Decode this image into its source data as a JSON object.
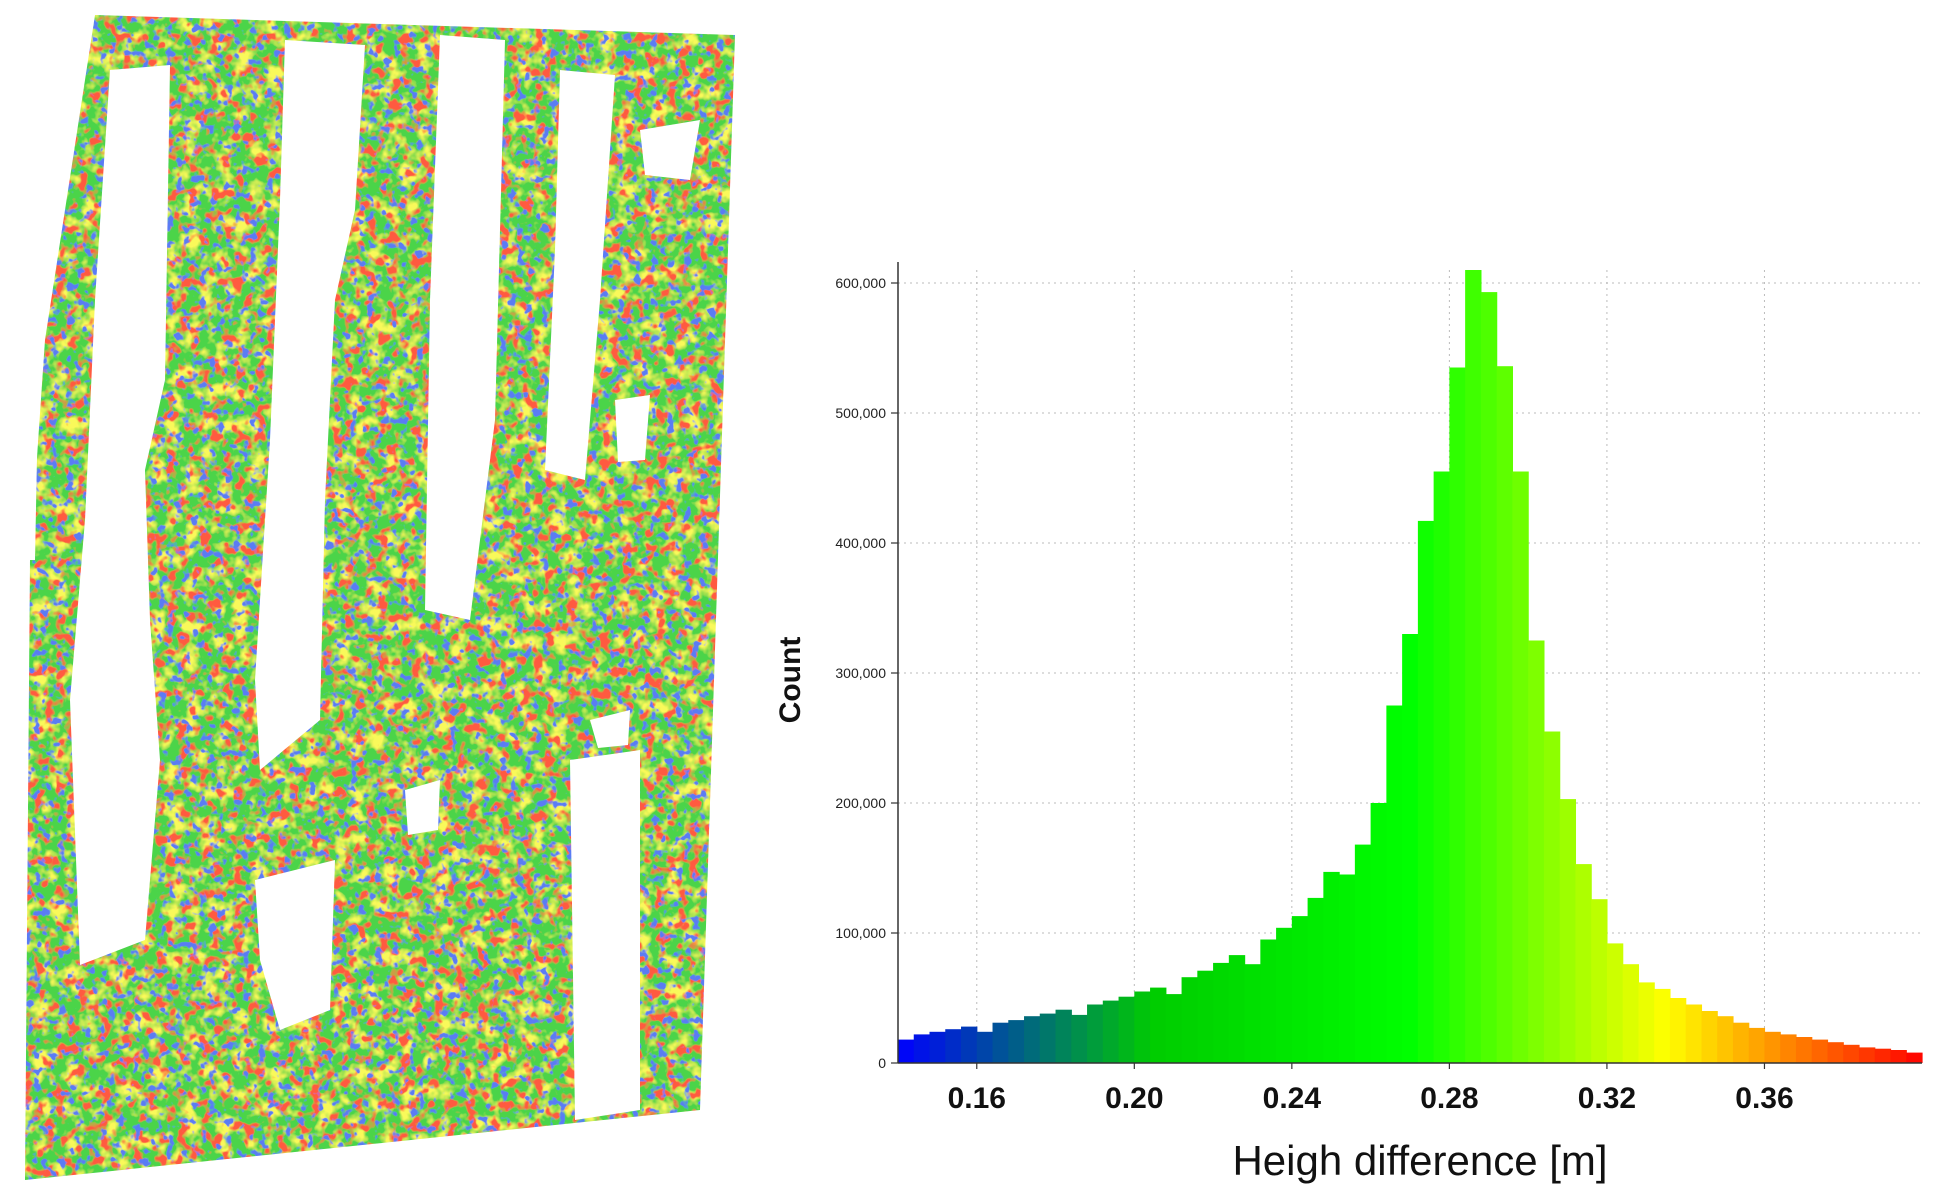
{
  "chart_data": {
    "type": "bar",
    "title": "",
    "xlabel": "Heigh difference [m]",
    "ylabel": "Count",
    "xlim": [
      0.14,
      0.4
    ],
    "ylim": [
      0,
      610000
    ],
    "x_ticks": [
      "0.16",
      "0.20",
      "0.24",
      "0.28",
      "0.32",
      "0.36"
    ],
    "y_ticks": [
      "0",
      "100,000",
      "200,000",
      "300,000",
      "400,000",
      "500,000",
      "600,000"
    ],
    "grid": "dotted",
    "bin_width": 0.004,
    "bin_starts": [
      0.14,
      0.144,
      0.148,
      0.152,
      0.156,
      0.16,
      0.164,
      0.168,
      0.172,
      0.176,
      0.18,
      0.184,
      0.188,
      0.192,
      0.196,
      0.2,
      0.204,
      0.208,
      0.212,
      0.216,
      0.22,
      0.224,
      0.228,
      0.232,
      0.236,
      0.24,
      0.244,
      0.248,
      0.252,
      0.256,
      0.26,
      0.264,
      0.268,
      0.272,
      0.276,
      0.28,
      0.284,
      0.288,
      0.292,
      0.296,
      0.3,
      0.304,
      0.308,
      0.312,
      0.316,
      0.32,
      0.324,
      0.328,
      0.332,
      0.336,
      0.34,
      0.344,
      0.348,
      0.352,
      0.356,
      0.36,
      0.364,
      0.368,
      0.372,
      0.376,
      0.38,
      0.384,
      0.388,
      0.392,
      0.396
    ],
    "values": [
      18000,
      22000,
      24000,
      26000,
      28000,
      24000,
      31000,
      33000,
      36000,
      38000,
      41000,
      37000,
      45000,
      48000,
      51000,
      55000,
      58000,
      53000,
      66000,
      71000,
      77000,
      83000,
      76000,
      95000,
      104000,
      113000,
      127000,
      147000,
      145000,
      168000,
      200000,
      275000,
      330000,
      417000,
      455000,
      535000,
      610000,
      593000,
      536000,
      455000,
      325000,
      255000,
      203000,
      153000,
      126000,
      92000,
      76000,
      62000,
      57000,
      50000,
      45000,
      40000,
      36000,
      31000,
      27000,
      24000,
      22000,
      20000,
      18000,
      16000,
      14000,
      12000,
      11000,
      10000,
      8000
    ],
    "colormap": [
      "#0000ff",
      "#00cc00",
      "#00ff00",
      "#ffff00",
      "#ff0000"
    ],
    "grid_color": "#bbbbbb"
  }
}
